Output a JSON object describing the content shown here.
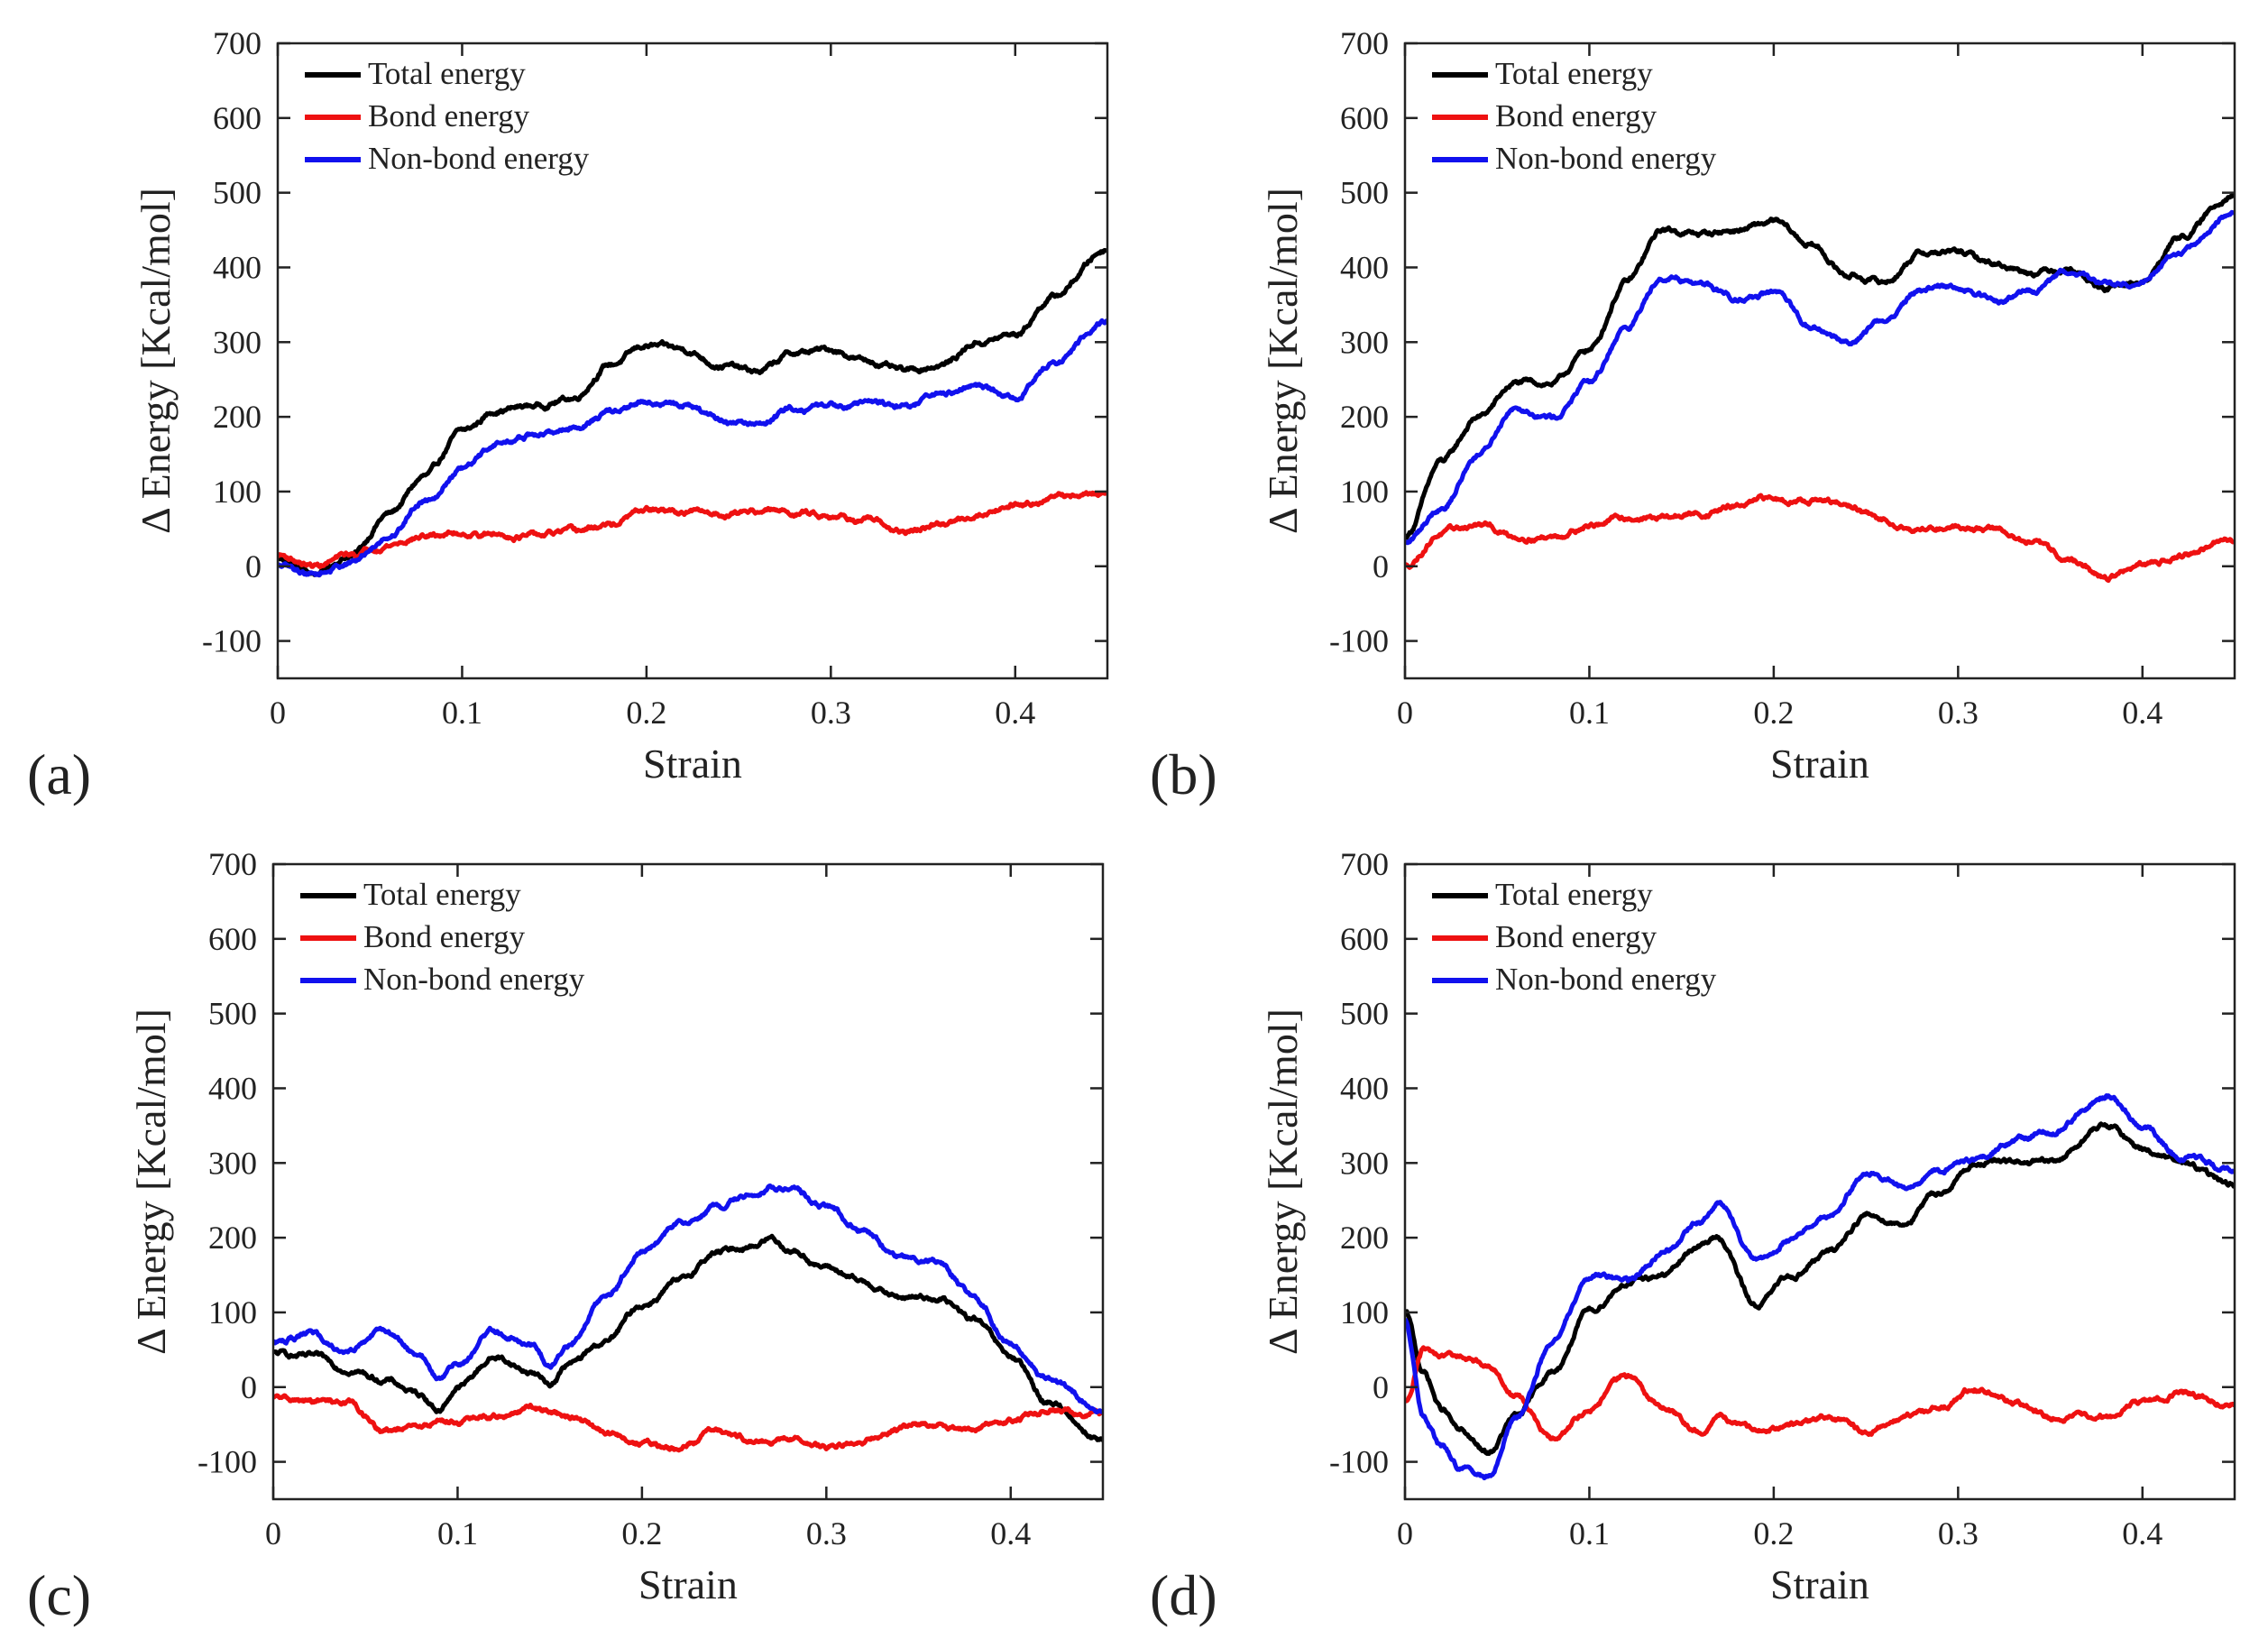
{
  "colors": {
    "total": "#000000",
    "bond": "#ee1111",
    "nonbond": "#1111ee",
    "axis": "#222222"
  },
  "chart_data": [
    {
      "type": "line",
      "panel_label": "(a)",
      "xlabel": "Strain",
      "ylabel": "Δ Energy [Kcal/mol]",
      "xlim": [
        0,
        0.45
      ],
      "ylim": [
        -150,
        700
      ],
      "xticks": [
        "0",
        "0.1",
        "0.2",
        "0.3",
        "0.4"
      ],
      "yticks": [
        "-100",
        "0",
        "100",
        "200",
        "300",
        "400",
        "500",
        "600",
        "700"
      ],
      "legend_position": "top-left",
      "grid": false,
      "x": [
        0,
        0.02,
        0.04,
        0.06,
        0.08,
        0.1,
        0.12,
        0.14,
        0.16,
        0.18,
        0.2,
        0.22,
        0.24,
        0.26,
        0.28,
        0.3,
        0.32,
        0.34,
        0.36,
        0.38,
        0.4,
        0.42,
        0.45
      ],
      "series": [
        {
          "name": "Total energy",
          "color_key": "total",
          "values": [
            10,
            -10,
            15,
            70,
            120,
            180,
            210,
            215,
            225,
            270,
            295,
            290,
            270,
            260,
            285,
            290,
            275,
            260,
            270,
            300,
            310,
            360,
            425
          ]
        },
        {
          "name": "Bond energy",
          "color_key": "bond",
          "values": [
            15,
            0,
            15,
            30,
            40,
            45,
            42,
            40,
            45,
            55,
            75,
            72,
            70,
            75,
            72,
            70,
            60,
            45,
            55,
            70,
            85,
            92,
            98
          ]
        },
        {
          "name": "Non-bond energy",
          "color_key": "nonbond",
          "values": [
            0,
            -10,
            5,
            40,
            90,
            130,
            165,
            175,
            185,
            205,
            220,
            215,
            195,
            190,
            210,
            215,
            220,
            215,
            230,
            240,
            225,
            270,
            330
          ]
        }
      ]
    },
    {
      "type": "line",
      "panel_label": "(b)",
      "xlabel": "Strain",
      "ylabel": "Δ Energy [Kcal/mol]",
      "xlim": [
        0,
        0.45
      ],
      "ylim": [
        -150,
        700
      ],
      "xticks": [
        "0",
        "0.1",
        "0.2",
        "0.3",
        "0.4"
      ],
      "yticks": [
        "-100",
        "0",
        "100",
        "200",
        "300",
        "400",
        "500",
        "600",
        "700"
      ],
      "legend_position": "top-left",
      "grid": false,
      "x": [
        0,
        0.02,
        0.04,
        0.06,
        0.08,
        0.1,
        0.12,
        0.14,
        0.16,
        0.18,
        0.2,
        0.22,
        0.24,
        0.26,
        0.28,
        0.3,
        0.32,
        0.34,
        0.36,
        0.38,
        0.4,
        0.42,
        0.45
      ],
      "series": [
        {
          "name": "Total energy",
          "color_key": "total",
          "values": [
            40,
            140,
            200,
            245,
            245,
            290,
            380,
            450,
            445,
            450,
            460,
            430,
            390,
            380,
            420,
            420,
            405,
            395,
            400,
            370,
            380,
            440,
            500
          ]
        },
        {
          "name": "Bond energy",
          "color_key": "bond",
          "values": [
            0,
            45,
            55,
            40,
            40,
            55,
            65,
            65,
            70,
            80,
            90,
            90,
            80,
            60,
            50,
            55,
            50,
            30,
            10,
            -15,
            0,
            15,
            35
          ]
        },
        {
          "name": "Non-bond energy",
          "color_key": "nonbond",
          "values": [
            30,
            80,
            150,
            215,
            200,
            245,
            320,
            390,
            380,
            360,
            365,
            320,
            300,
            330,
            370,
            375,
            355,
            370,
            390,
            380,
            380,
            420,
            470
          ]
        }
      ]
    },
    {
      "type": "line",
      "panel_label": "(c)",
      "xlabel": "Strain",
      "ylabel": "Δ Energy [Kcal/mol]",
      "xlim": [
        0,
        0.45
      ],
      "ylim": [
        -150,
        700
      ],
      "xticks": [
        "0",
        "0.1",
        "0.2",
        "0.3",
        "0.4"
      ],
      "yticks": [
        "-100",
        "0",
        "100",
        "200",
        "300",
        "400",
        "500",
        "600",
        "700"
      ],
      "legend_position": "top-left",
      "grid": false,
      "x": [
        0,
        0.02,
        0.04,
        0.06,
        0.08,
        0.09,
        0.1,
        0.12,
        0.14,
        0.15,
        0.16,
        0.18,
        0.2,
        0.22,
        0.24,
        0.26,
        0.27,
        0.28,
        0.3,
        0.32,
        0.34,
        0.36,
        0.38,
        0.4,
        0.42,
        0.45
      ],
      "series": [
        {
          "name": "Total energy",
          "color_key": "total",
          "values": [
            45,
            40,
            25,
            10,
            -10,
            -30,
            0,
            40,
            20,
            5,
            30,
            60,
            110,
            140,
            180,
            190,
            200,
            185,
            160,
            140,
            120,
            120,
            90,
            40,
            -20,
            -70
          ]
        },
        {
          "name": "Bond energy",
          "color_key": "bond",
          "values": [
            -15,
            -20,
            -20,
            -60,
            -55,
            -45,
            -45,
            -40,
            -30,
            -30,
            -40,
            -60,
            -75,
            -85,
            -55,
            -70,
            -75,
            -70,
            -80,
            -70,
            -55,
            -50,
            -55,
            -45,
            -30,
            -35
          ]
        },
        {
          "name": "Non-bond energy",
          "color_key": "nonbond",
          "values": [
            60,
            70,
            50,
            75,
            40,
            10,
            30,
            75,
            60,
            30,
            60,
            120,
            180,
            220,
            240,
            260,
            270,
            265,
            240,
            210,
            175,
            170,
            120,
            60,
            10,
            -30
          ]
        }
      ]
    },
    {
      "type": "line",
      "panel_label": "(d)",
      "xlabel": "Strain",
      "ylabel": "Δ Energy [Kcal/mol]",
      "xlim": [
        0,
        0.45
      ],
      "ylim": [
        -150,
        700
      ],
      "xticks": [
        "0",
        "0.1",
        "0.2",
        "0.3",
        "0.4"
      ],
      "yticks": [
        "-100",
        "0",
        "100",
        "200",
        "300",
        "400",
        "500",
        "600",
        "700"
      ],
      "legend_position": "top-left",
      "grid": false,
      "x": [
        0,
        0.01,
        0.02,
        0.03,
        0.045,
        0.06,
        0.08,
        0.1,
        0.12,
        0.14,
        0.16,
        0.17,
        0.19,
        0.21,
        0.23,
        0.25,
        0.27,
        0.29,
        0.31,
        0.33,
        0.35,
        0.38,
        0.4,
        0.42,
        0.45
      ],
      "series": [
        {
          "name": "Total energy",
          "color_key": "total",
          "values": [
            100,
            20,
            -30,
            -60,
            -90,
            -40,
            20,
            100,
            140,
            150,
            190,
            200,
            110,
            150,
            180,
            230,
            220,
            260,
            300,
            300,
            300,
            350,
            320,
            300,
            270
          ]
        },
        {
          "name": "Bond energy",
          "color_key": "bond",
          "values": [
            -20,
            50,
            40,
            40,
            30,
            -10,
            -70,
            -30,
            15,
            -30,
            -60,
            -40,
            -60,
            -50,
            -40,
            -60,
            -40,
            -30,
            0,
            -20,
            -40,
            -40,
            -20,
            -10,
            -20
          ]
        },
        {
          "name": "Non-bond energy",
          "color_key": "nonbond",
          "values": [
            90,
            -40,
            -80,
            -110,
            -120,
            -40,
            60,
            150,
            140,
            180,
            220,
            250,
            170,
            200,
            230,
            285,
            270,
            290,
            305,
            330,
            340,
            390,
            350,
            310,
            290
          ]
        }
      ]
    }
  ]
}
